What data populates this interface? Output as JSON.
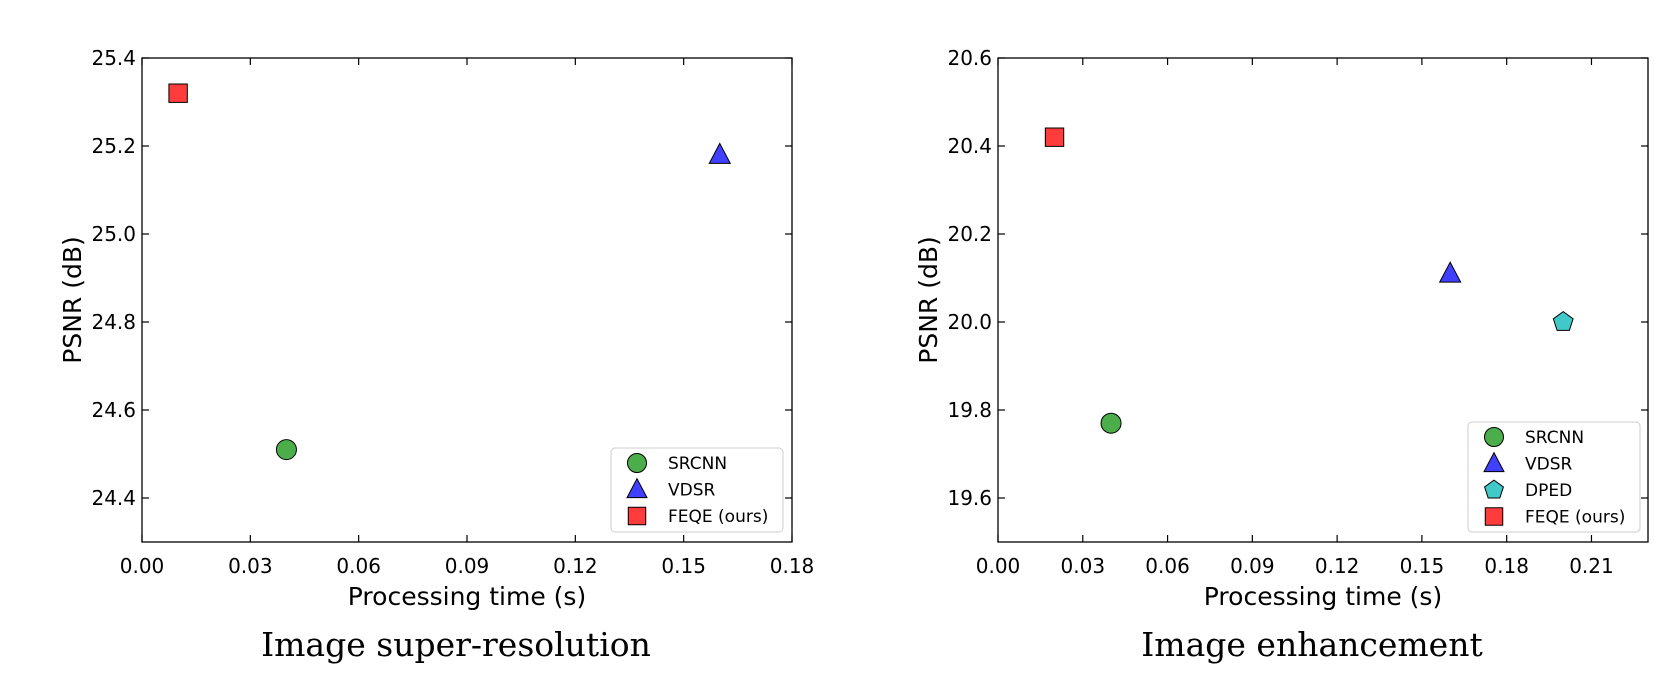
{
  "chart_data": [
    {
      "type": "scatter",
      "title": "",
      "caption": "Image super-resolution",
      "xlabel": "Processing time (s)",
      "ylabel": "PSNR (dB)",
      "xlim": [
        0.0,
        0.18
      ],
      "ylim": [
        24.3,
        25.4
      ],
      "xticks": [
        "0.00",
        "0.03",
        "0.06",
        "0.09",
        "0.12",
        "0.15",
        "0.18"
      ],
      "yticks": [
        "24.4",
        "24.6",
        "24.8",
        "25.0",
        "25.2",
        "25.4"
      ],
      "legend_position": "lower-right",
      "series": [
        {
          "name": "SRCNN",
          "marker": "circle",
          "color": "#2ca02c",
          "x": [
            0.04
          ],
          "y": [
            24.51
          ]
        },
        {
          "name": "VDSR",
          "marker": "triangle",
          "color": "#1f1fff",
          "x": [
            0.16
          ],
          "y": [
            25.18
          ]
        },
        {
          "name": "FEQE (ours)",
          "marker": "square",
          "color": "#ff1a1a",
          "x": [
            0.01
          ],
          "y": [
            25.32
          ]
        }
      ]
    },
    {
      "type": "scatter",
      "title": "",
      "caption": "Image enhancement",
      "xlabel": "Processing time (s)",
      "ylabel": "PSNR (dB)",
      "xlim": [
        0.0,
        0.23
      ],
      "ylim": [
        19.5,
        20.6
      ],
      "xticks": [
        "0.00",
        "0.03",
        "0.06",
        "0.09",
        "0.12",
        "0.15",
        "0.18",
        "0.21"
      ],
      "yticks": [
        "19.6",
        "19.8",
        "20.0",
        "20.2",
        "20.4",
        "20.6"
      ],
      "legend_position": "lower-right",
      "series": [
        {
          "name": "SRCNN",
          "marker": "circle",
          "color": "#2ca02c",
          "x": [
            0.04
          ],
          "y": [
            19.77
          ]
        },
        {
          "name": "VDSR",
          "marker": "triangle",
          "color": "#1f1fff",
          "x": [
            0.16
          ],
          "y": [
            20.11
          ]
        },
        {
          "name": "DPED",
          "marker": "pentagon",
          "color": "#20c0c0",
          "x": [
            0.2
          ],
          "y": [
            20.0
          ]
        },
        {
          "name": "FEQE (ours)",
          "marker": "square",
          "color": "#ff1a1a",
          "x": [
            0.02
          ],
          "y": [
            20.42
          ]
        }
      ]
    }
  ]
}
